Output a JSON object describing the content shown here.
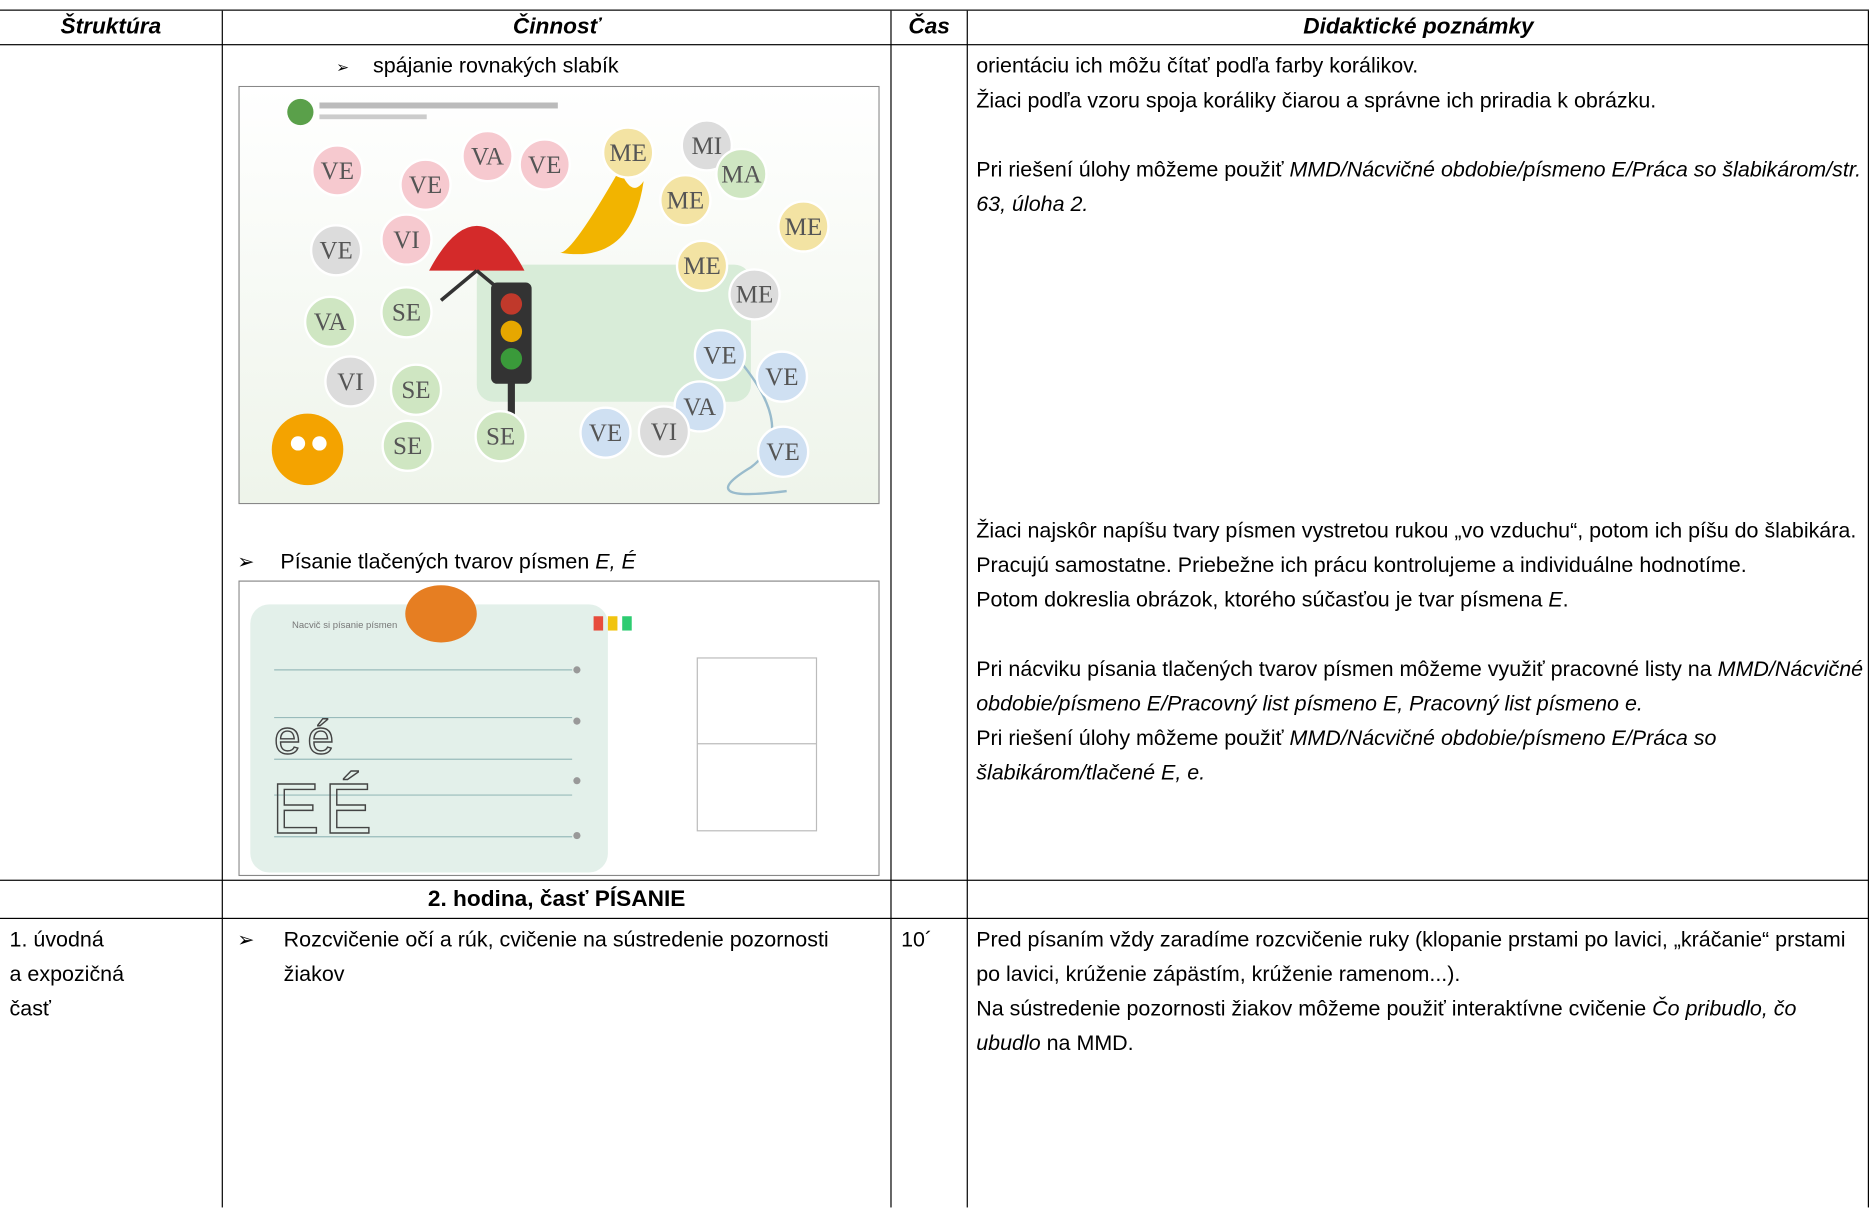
{
  "header": {
    "cells": [
      "Štruktúra",
      "Činnosť",
      "Čas",
      "Didaktické poznámky"
    ]
  },
  "row1": {
    "activity1": "spájanie rovnakých slabík",
    "beads": [
      "VE",
      "VE",
      "VA",
      "VE",
      "ME",
      "MI",
      "MA",
      "ME",
      "ME",
      "VE",
      "VI",
      "ME",
      "ME",
      "VA",
      "SE",
      "VE",
      "VE",
      "VI",
      "SE",
      "VA",
      "SE",
      "SE",
      "VE",
      "VI",
      "VE"
    ],
    "activity2": [
      {
        "t": "Písanie tlačených tvarov písmen ",
        "i": false
      },
      {
        "t": "E, É",
        "i": true
      }
    ],
    "exercise2": {
      "caption": "Nacvič si písanie písmen",
      "letters": [
        "e",
        "é",
        "E",
        "É"
      ]
    },
    "notes_top": [
      [
        {
          "t": "orientáciu ich môžu čítať podľa farby korálikov.",
          "i": false
        }
      ],
      [
        {
          "t": "Žiaci podľa vzoru spoja koráliky čiarou a  správne ich priradia k obrázku.",
          "i": false
        }
      ],
      [
        {
          "t": "Pri riešení úlohy môžeme použiť ",
          "i": false
        },
        {
          "t": "MMD/Nácvičné obdobie/písmeno E/Práca so šlabikárom/str. 63, úloha 2.",
          "i": true
        }
      ]
    ],
    "notes_bottom": [
      [
        {
          "t": "Žiaci najskôr napíšu tvary písmen vystretou rukou „vo vzduchu“, potom ich píšu do šlabikára. Pracujú samostatne. Priebežne ich prácu kontrolujeme a individuálne hodnotíme.",
          "i": false
        }
      ],
      [
        {
          "t": "Potom dokreslia obrázok, ktorého súčasťou je tvar písmena ",
          "i": false
        },
        {
          "t": "E",
          "i": true
        },
        {
          "t": ".",
          "i": false
        }
      ],
      [
        {
          "t": "Pri nácviku písania tlačených tvarov písmen môžeme využiť pracovné listy na ",
          "i": false
        },
        {
          "t": "MMD/Nácvičné obdobie/písmeno E/Pracovný list písmeno E, Pracovný list písmeno e.",
          "i": true
        }
      ],
      [
        {
          "t": "Pri riešení úlohy môžeme použiť ",
          "i": false
        },
        {
          "t": "MMD/Nácvičné obdobie/písmeno E/Práca so šlabikárom/tlačené E, e.",
          "i": true
        }
      ]
    ]
  },
  "row2": {
    "title": "2. hodina, časť PÍSANIE"
  },
  "row3": {
    "structure": [
      "1. úvodná",
      "a expozičná",
      "časť"
    ],
    "activity": "Rozcvičenie očí a rúk, cvičenie na sústredenie pozornosti žiakov",
    "time": "10´",
    "notes": [
      [
        {
          "t": "Pred písaním vždy zaradíme rozcvičenie ruky (klopanie prstami po lavici, „kráčanie“ prstami po lavici, krúženie zápästím, krúženie ramenom...).",
          "i": false
        }
      ],
      [
        {
          "t": "Na sústredenie pozornosti žiakov môžeme použiť interaktívne cvičenie ",
          "i": false
        },
        {
          "t": "Čo pribudlo, čo ubudlo",
          "i": true
        },
        {
          "t": " na MMD.",
          "i": false
        }
      ]
    ]
  }
}
